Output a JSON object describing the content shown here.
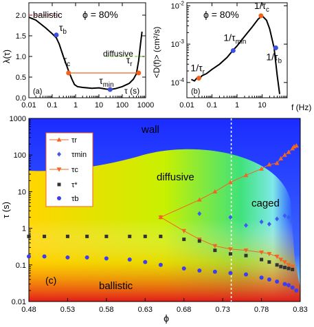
{
  "chart_data": [
    {
      "panel": "(a)",
      "type": "line",
      "xscale": "log",
      "xlim": [
        0.01,
        1000
      ],
      "ylim": [
        0,
        2.3
      ],
      "xticks": [
        "0.01",
        "0.1",
        "1",
        "10",
        "100",
        "1000"
      ],
      "yticks": [
        "0.0",
        "0.5",
        "1.0",
        "1.5",
        "2.0"
      ],
      "xlabel": "τ (s)",
      "ylabel": "λ(τ)",
      "phi_label": "ϕ = 80%",
      "ballistic_level": 2.0,
      "diffusive_level": 1.0,
      "ballistic_label": "ballistic",
      "diffusive_label": "diffusive",
      "series": [
        {
          "x": [
            0.01,
            0.02,
            0.05,
            0.1,
            0.15,
            0.2,
            0.3,
            0.5,
            0.7,
            0.9,
            1.2,
            2,
            5,
            10,
            20,
            30,
            50,
            100,
            200,
            300,
            400,
            500,
            600,
            700
          ],
          "y": [
            1.95,
            1.88,
            1.7,
            1.55,
            1.45,
            1.3,
            1.0,
            0.65,
            0.45,
            0.32,
            0.27,
            0.25,
            0.23,
            0.24,
            0.21,
            0.2,
            0.22,
            0.27,
            0.35,
            0.45,
            0.58,
            0.9,
            1.3,
            1.6
          ]
        }
      ],
      "markers": [
        {
          "label": "τ",
          "sub": "b",
          "x": 0.15,
          "y": 1.52,
          "color": "#3d4fe0"
        },
        {
          "label": "τ",
          "sub": "c",
          "x": 0.5,
          "y": 0.6,
          "color": "#f0621e"
        },
        {
          "label": "τ",
          "sub": "min",
          "x": 30,
          "y": 0.2,
          "color": "#3d4fe0"
        },
        {
          "label": "τ",
          "sub": "r",
          "x": 500,
          "y": 0.6,
          "color": "#f0621e"
        }
      ],
      "hline": {
        "from": 0.5,
        "to": 500,
        "y": 0.6,
        "color": "#f0621e"
      }
    },
    {
      "panel": "(b)",
      "type": "line",
      "xscale": "log",
      "yscale": "log",
      "xlim": [
        0.01,
        100
      ],
      "ylim": [
        4e-05,
        0.012
      ],
      "xticks": [
        "0.01",
        "0.1",
        "1",
        "10"
      ],
      "yticks": [
        "10",
        "10",
        "10"
      ],
      "ytick_exps": [
        "-4",
        "-3",
        "-2"
      ],
      "xlabel": "f (Hz)",
      "ylabel": "<D(f)> (cm²/s)",
      "phi_label": "ϕ = 80%",
      "series": [
        {
          "x": [
            0.015,
            0.02,
            0.025,
            0.03,
            0.04,
            0.06,
            0.1,
            0.2,
            0.4,
            0.7,
            1,
            2,
            4,
            7,
            10,
            15,
            20,
            30,
            40,
            50
          ],
          "y": [
            0.00012,
            0.00011,
            0.00013,
            0.00012,
            0.00015,
            0.00017,
            0.00022,
            0.0003,
            0.00045,
            0.0007,
            0.0009,
            0.0016,
            0.0028,
            0.0045,
            0.0055,
            0.0042,
            0.0025,
            0.0008,
            0.00015,
            5e-05
          ]
        }
      ],
      "markers": [
        {
          "label": "1/τ",
          "sub": "r",
          "x": 0.03,
          "y": 0.00013,
          "color": "#f0621e"
        },
        {
          "label": "1/τ",
          "sub": "min",
          "x": 0.7,
          "y": 0.00068,
          "color": "#3d4fe0"
        },
        {
          "label": "1/τ",
          "sub": "c",
          "x": 9,
          "y": 0.0055,
          "color": "#f0621e"
        },
        {
          "label": "1/τ",
          "sub": "b",
          "x": 35,
          "y": 0.0008,
          "color": "#3d4fe0"
        }
      ]
    },
    {
      "panel": "(c)",
      "type": "heatmap",
      "yscale": "log",
      "xlim": [
        0.48,
        0.83
      ],
      "ylim": [
        0.01,
        1000
      ],
      "xticks": [
        "0.48",
        "0.53",
        "0.58",
        "0.63",
        "0.68",
        "0.73",
        "0.78",
        "0.83"
      ],
      "yticks": [
        "0.01",
        "0.1",
        "1",
        "10",
        "100",
        "1000"
      ],
      "xlabel": "ϕ",
      "ylabel": "τ (s)",
      "region_labels": [
        "wall",
        "diffusive",
        "caged",
        "ballistic"
      ],
      "dashed_vline_x": 0.741,
      "legend": [
        "τr",
        "τmin",
        "τc",
        "τ*",
        "τb"
      ],
      "series": [
        {
          "name": "τr",
          "marker": "triangle-up",
          "color": "#f26522",
          "x": [
            0.65,
            0.7,
            0.72,
            0.74,
            0.76,
            0.78,
            0.79,
            0.8,
            0.805,
            0.81,
            0.815,
            0.82,
            0.822,
            0.825
          ],
          "y": [
            2,
            6,
            10,
            18,
            28,
            42,
            55,
            60,
            80,
            100,
            120,
            150,
            170,
            180
          ]
        },
        {
          "name": "τmin",
          "marker": "diamond",
          "color": "#3d5af1",
          "x": [
            0.7,
            0.74,
            0.76,
            0.78,
            0.79,
            0.8,
            0.81,
            0.815,
            0.82
          ],
          "y": [
            2.5,
            2,
            1.2,
            1.5,
            1.3,
            1.8,
            2.2,
            2.0,
            1.5
          ]
        },
        {
          "name": "τc",
          "marker": "triangle-down",
          "color": "#f26522",
          "x": [
            0.65,
            0.68,
            0.7,
            0.72,
            0.74,
            0.76,
            0.78,
            0.79,
            0.8,
            0.805,
            0.81,
            0.815,
            0.82
          ],
          "y": [
            2,
            0.85,
            0.5,
            0.33,
            0.27,
            0.25,
            0.22,
            0.2,
            0.17,
            0.14,
            0.12,
            0.1,
            0.09
          ]
        },
        {
          "name": "τ*",
          "marker": "square",
          "color": "#333333",
          "x": [
            0.48,
            0.5,
            0.53,
            0.555,
            0.58,
            0.61,
            0.63,
            0.65,
            0.68,
            0.7,
            0.72,
            0.74,
            0.76,
            0.78,
            0.79,
            0.8,
            0.805,
            0.81,
            0.815,
            0.82
          ],
          "y": [
            0.6,
            0.6,
            0.6,
            0.6,
            0.6,
            0.6,
            0.6,
            0.6,
            0.5,
            0.45,
            0.25,
            0.2,
            0.18,
            0.14,
            0.12,
            0.1,
            0.09,
            0.085,
            0.08,
            0.075
          ]
        },
        {
          "name": "τb",
          "marker": "circle",
          "color": "#3d3df0",
          "x": [
            0.48,
            0.5,
            0.53,
            0.555,
            0.58,
            0.61,
            0.63,
            0.65,
            0.68,
            0.7,
            0.72,
            0.74,
            0.76,
            0.78,
            0.79,
            0.8,
            0.81,
            0.815,
            0.82,
            0.825
          ],
          "y": [
            0.17,
            0.17,
            0.16,
            0.16,
            0.15,
            0.14,
            0.12,
            0.1,
            0.08,
            0.07,
            0.065,
            0.06,
            0.055,
            0.045,
            0.04,
            0.035,
            0.03,
            0.028,
            0.024,
            0.02
          ]
        }
      ]
    }
  ]
}
